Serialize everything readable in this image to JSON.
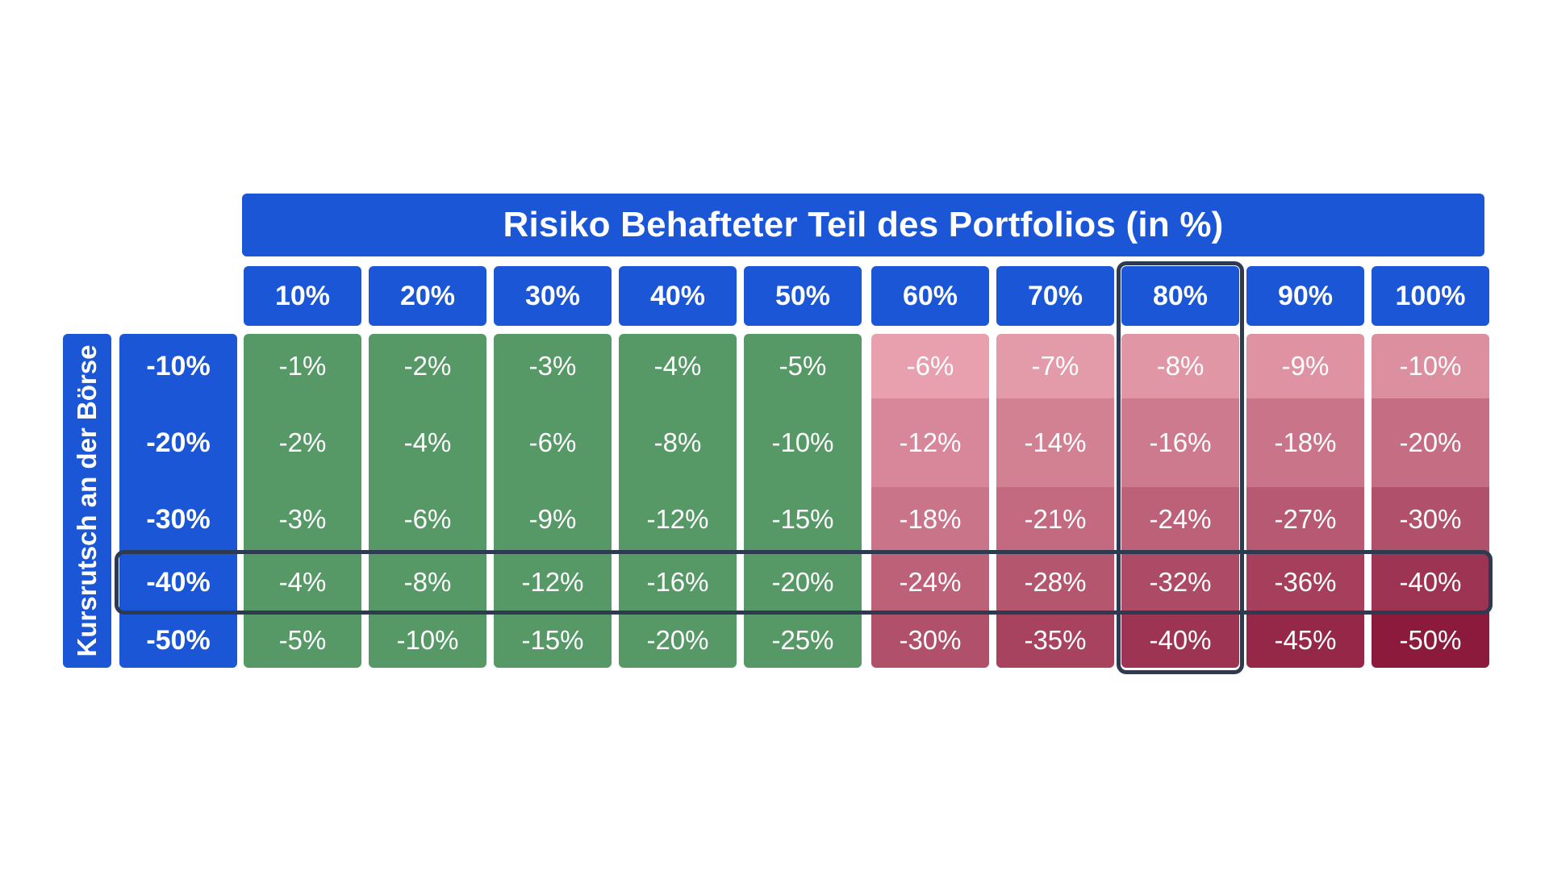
{
  "chart_data": {
    "type": "heatmap",
    "title": "Risiko Behafteter Teil des Portfolios (in %)",
    "ylabel": "Kursrutsch an der Börse",
    "columns": [
      "10%",
      "20%",
      "30%",
      "40%",
      "50%",
      "60%",
      "70%",
      "80%",
      "90%",
      "100%"
    ],
    "rows": [
      "-10%",
      "-20%",
      "-30%",
      "-40%",
      "-50%"
    ],
    "values": [
      [
        -1,
        -2,
        -3,
        -4,
        -5,
        -6,
        -7,
        -8,
        -9,
        -10
      ],
      [
        -2,
        -4,
        -6,
        -8,
        -10,
        -12,
        -14,
        -16,
        -18,
        -20
      ],
      [
        -3,
        -6,
        -9,
        -12,
        -15,
        -18,
        -21,
        -24,
        -27,
        -30
      ],
      [
        -4,
        -8,
        -12,
        -16,
        -20,
        -24,
        -28,
        -32,
        -36,
        -40
      ],
      [
        -5,
        -10,
        -15,
        -20,
        -25,
        -30,
        -35,
        -40,
        -45,
        -50
      ]
    ],
    "cell_labels": [
      [
        "-1%",
        "-2%",
        "-3%",
        "-4%",
        "-5%",
        "-6%",
        "-7%",
        "-8%",
        "-9%",
        "-10%"
      ],
      [
        "-2%",
        "-4%",
        "-6%",
        "-8%",
        "-10%",
        "-12%",
        "-14%",
        "-16%",
        "-18%",
        "-20%"
      ],
      [
        "-3%",
        "-6%",
        "-9%",
        "-12%",
        "-15%",
        "-18%",
        "-21%",
        "-24%",
        "-27%",
        "-30%"
      ],
      [
        "-4%",
        "-8%",
        "-12%",
        "-16%",
        "-20%",
        "-24%",
        "-28%",
        "-32%",
        "-36%",
        "-40%"
      ],
      [
        "-5%",
        "-10%",
        "-15%",
        "-20%",
        "-25%",
        "-30%",
        "-35%",
        "-40%",
        "-45%",
        "-50%"
      ]
    ],
    "highlight": {
      "row": "-40%",
      "column": "80%"
    },
    "colors": {
      "header": "#1a56d6",
      "green": "#569967",
      "red_light": "#e8a0ae",
      "red_dark": "#8c1a3d",
      "highlight_border": "#2e3a4f"
    }
  }
}
